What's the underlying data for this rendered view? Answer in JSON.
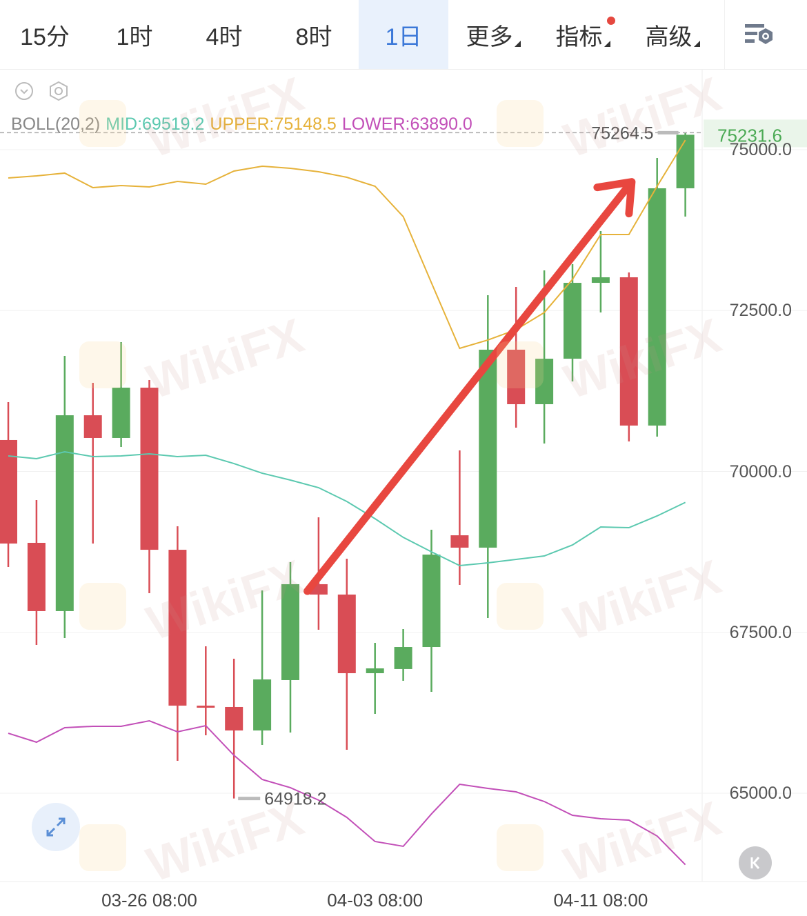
{
  "tabs": [
    {
      "label": "15分"
    },
    {
      "label": "1时"
    },
    {
      "label": "4时"
    },
    {
      "label": "8时"
    },
    {
      "label": "1日",
      "active": true
    },
    {
      "label": "更多",
      "dropdown": true
    },
    {
      "label": "指标",
      "dropdown": true,
      "badge_dot": true
    },
    {
      "label": "高级",
      "dropdown": true
    }
  ],
  "toolbar": {
    "settings_icon": "chart-settings-icon",
    "collapse_icon": "chevron-down-circle-icon",
    "indicator_settings_icon": "hexagon-gear-icon",
    "expand_icon": "expand-arrows-icon",
    "back_icon": "scroll-to-latest-icon"
  },
  "legend": {
    "name": "BOLL(20,2)",
    "mid": "MID:69519.2",
    "upper": "UPPER:75148.5",
    "lower": "LOWER:63890.0"
  },
  "watermark": "WikiFX",
  "colors": {
    "up": "#5aab5e",
    "down": "#d94d55",
    "upper": "#e6b23a",
    "mid": "#5cc9b0",
    "lower": "#c24fb8",
    "accent": "#3b78d8",
    "arrow": "#e8473f"
  },
  "chart_data": {
    "type": "candlestick",
    "interval": "1日",
    "ylim": [
      63600,
      75900
    ],
    "y_ticks": [
      "75000.0",
      "72500.0",
      "70000.0",
      "67500.0",
      "65000.0"
    ],
    "y_tick_values": [
      75000,
      72500,
      70000,
      67500,
      65000
    ],
    "x_ticks": [
      {
        "label": "03-26 08:00",
        "index": 5
      },
      {
        "label": "04-03 08:00",
        "index": 13
      },
      {
        "label": "04-11 08:00",
        "index": 21
      }
    ],
    "candles": [
      {
        "o": 70488,
        "h": 71077,
        "l": 68515,
        "c": 68880
      },
      {
        "o": 68891,
        "h": 69555,
        "l": 67304,
        "c": 67830
      },
      {
        "o": 67830,
        "h": 71795,
        "l": 67412,
        "c": 70873
      },
      {
        "o": 70873,
        "h": 71377,
        "l": 68880,
        "c": 70520
      },
      {
        "o": 70520,
        "h": 72010,
        "l": 70380,
        "c": 71302
      },
      {
        "o": 71302,
        "h": 71420,
        "l": 68108,
        "c": 68783
      },
      {
        "o": 68783,
        "h": 69148,
        "l": 65504,
        "c": 66361
      },
      {
        "o": 66361,
        "h": 67283,
        "l": 65900,
        "c": 66330
      },
      {
        "o": 66340,
        "h": 67090,
        "l": 64918.2,
        "c": 65975
      },
      {
        "o": 65975,
        "h": 68151,
        "l": 65750,
        "c": 66768
      },
      {
        "o": 66758,
        "h": 68590,
        "l": 65943,
        "c": 68248
      },
      {
        "o": 68248,
        "h": 69287,
        "l": 67540,
        "c": 68087
      },
      {
        "o": 68087,
        "h": 68644,
        "l": 65675,
        "c": 66865
      },
      {
        "o": 66865,
        "h": 67337,
        "l": 66233,
        "c": 66940
      },
      {
        "o": 66930,
        "h": 67551,
        "l": 66747,
        "c": 67272
      },
      {
        "o": 67272,
        "h": 69094,
        "l": 66576,
        "c": 68708
      },
      {
        "o": 69008,
        "h": 70327,
        "l": 68237,
        "c": 68816
      },
      {
        "o": 68816,
        "h": 72738,
        "l": 67722,
        "c": 71892
      },
      {
        "o": 71892,
        "h": 72867,
        "l": 70681,
        "c": 71045
      },
      {
        "o": 71045,
        "h": 73124,
        "l": 70434,
        "c": 71752
      },
      {
        "o": 71752,
        "h": 73221,
        "l": 71399,
        "c": 72931
      },
      {
        "o": 72931,
        "h": 73735,
        "l": 72470,
        "c": 73017
      },
      {
        "o": 73017,
        "h": 73092,
        "l": 70466,
        "c": 70713
      },
      {
        "o": 70713,
        "h": 74871,
        "l": 70541,
        "c": 74400
      },
      {
        "o": 74400,
        "h": 75264.5,
        "l": 73960,
        "c": 75231.6
      }
    ],
    "boll_upper": [
      74560,
      74593,
      74636,
      74410,
      74442,
      74421,
      74507,
      74464,
      74668,
      74743,
      74711,
      74657,
      74571,
      74432,
      73960,
      72931,
      71913,
      72042,
      72203,
      72470,
      72985,
      73682,
      73682,
      74432,
      75148.5
    ],
    "boll_mid": [
      70241,
      70198,
      70305,
      70230,
      70241,
      70273,
      70230,
      70252,
      70123,
      69973,
      69866,
      69748,
      69534,
      69266,
      68976,
      68751,
      68537,
      68580,
      68633,
      68687,
      68858,
      69137,
      69126,
      69309,
      69519.2
    ],
    "boll_lower": [
      65932,
      65793,
      66018,
      66040,
      66040,
      66125,
      65954,
      66050,
      65589,
      65214,
      65086,
      64893,
      64625,
      64250,
      64175,
      64678,
      65139,
      65075,
      65021,
      64871,
      64657,
      64603,
      64582,
      64335,
      63890
    ],
    "high_marker": "75264.5",
    "low_marker": "64918.2",
    "last_price": "75231.6",
    "annotation": {
      "type": "arrow",
      "from": {
        "index": 10.6,
        "price": 68140
      },
      "to": {
        "index": 22.1,
        "price": 74500
      }
    }
  }
}
